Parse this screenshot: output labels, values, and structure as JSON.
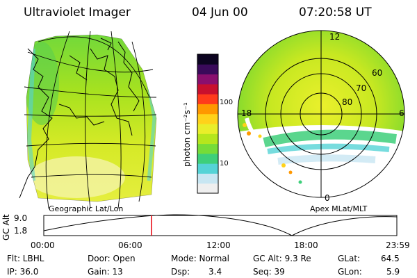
{
  "header": {
    "instrument": "Ultraviolet Imager",
    "date": "04 Jun 00",
    "time": "07:20:58 UT"
  },
  "left_panel": {
    "caption": "Geographic Lat/Lon"
  },
  "right_panel": {
    "caption": "Apex MLat/MLT",
    "mlt_labels": {
      "top": "12",
      "left": "18",
      "right": "6",
      "bottom": "0"
    },
    "lat_labels": [
      "60",
      "70",
      "80"
    ]
  },
  "colorbar": {
    "label": "photon cm⁻²s⁻¹",
    "ticks": [
      "100",
      "10"
    ],
    "colors": [
      "#efefef",
      "#c8e6f2",
      "#55d3d6",
      "#3ecf7a",
      "#76dc38",
      "#b5e61d",
      "#e9ee2a",
      "#ffd21a",
      "#ff9800",
      "#ff3b1b",
      "#c8102e",
      "#8a0f6e",
      "#3a0a5a",
      "#0c0420"
    ]
  },
  "timeline": {
    "axis_label": "GC Alt",
    "y_ticks": [
      "9.0",
      "1.8"
    ],
    "x_ticks": [
      "00:00",
      "06:00",
      "12:00",
      "18:00",
      "23:59"
    ],
    "current_time_fraction": 0.305,
    "marker_color": "#e8000b"
  },
  "status": {
    "flt": "Flt: LBHL",
    "ip": "IP: 36.0",
    "door": "Door: Open",
    "gain": "Gain: 13",
    "mode": "Mode: Normal",
    "dsp_label": "Dsp:",
    "dsp_value": "3.4",
    "gc_alt": "GC Alt: 9.3 Re",
    "seq": "Seq: 39",
    "glat_label": "GLat:",
    "glat_value": "64.5",
    "glon_label": "GLon:",
    "glon_value": "5.9"
  }
}
